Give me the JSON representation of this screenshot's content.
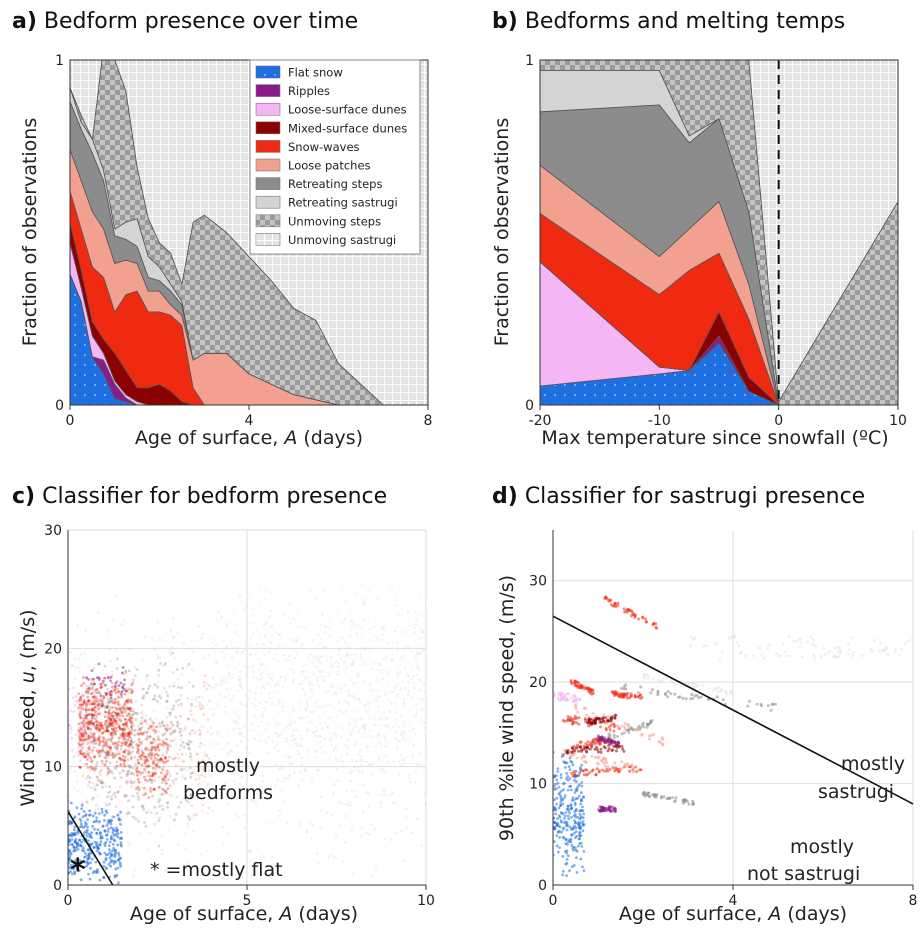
{
  "colors": {
    "flat_snow": "#1f6fe0",
    "ripples": "#8b1a8b",
    "loose_surface_dunes": "#f4b6f4",
    "mixed_surface_dunes": "#8b0000",
    "snow_waves": "#f02a10",
    "loose_patches": "#f2a090",
    "retreating_steps": "#8c8c8c",
    "retreating_sastrugi": "#d4d4d4",
    "unmoving_steps": "#9a9a9a",
    "unmoving_sastrugi": "#e3e3e3",
    "grid": "#dddddd",
    "axis": "#333333"
  },
  "panel_a": {
    "letter": "a)",
    "title": "Bedform presence over time",
    "ylabel": "Fraction of observations",
    "xlabel_pre": "Age of surface, ",
    "xlabel_var": "A",
    "xlabel_post": " (days)",
    "legend": [
      "Flat snow",
      "Ripples",
      "Loose-surface dunes",
      "Mixed-surface dunes",
      "Snow-waves",
      "Loose patches",
      "Retreating steps",
      "Retreating sastrugi",
      "Unmoving steps",
      "Unmoving sastrugi"
    ]
  },
  "panel_b": {
    "letter": "b)",
    "title": "Bedforms and melting temps",
    "ylabel": "Fraction of observations",
    "xlabel": "Max temperature since snowfall (ºC)"
  },
  "panel_c": {
    "letter": "c)",
    "title": "Classifier for bedform presence",
    "ylabel_pre": "Wind speed, ",
    "ylabel_var": "u",
    "ylabel_post": ", (m/s)",
    "xlabel_pre": "Age of surface, ",
    "xlabel_var": "A",
    "xlabel_post": " (days)",
    "ann_bedforms_1": "mostly",
    "ann_bedforms_2": "bedforms",
    "ann_flat_star": "*",
    "ann_flat": "* =mostly flat"
  },
  "panel_d": {
    "letter": "d)",
    "title": "Classifier for sastrugi presence",
    "ylabel": "90th %ile wind speed, (m/s)",
    "xlabel_pre": "Age of surface, ",
    "xlabel_var": "A",
    "xlabel_post": " (days)",
    "ann_sastrugi_1": "mostly",
    "ann_sastrugi_2": "sastrugi",
    "ann_not_1": "mostly",
    "ann_not_2": "not sastrugi"
  },
  "chart_data": [
    {
      "type": "area",
      "panel": "a",
      "title": "Bedform presence over time",
      "xlabel": "Age of surface, A (days)",
      "ylabel": "Fraction of observations",
      "xlim": [
        0,
        8
      ],
      "ylim": [
        0,
        1
      ],
      "xticks": [
        0,
        4,
        8
      ],
      "yticks": [
        0,
        1
      ],
      "x": [
        0,
        0.25,
        0.5,
        0.75,
        1.0,
        1.25,
        1.5,
        1.75,
        2.0,
        2.25,
        2.5,
        2.75,
        3.0,
        3.5,
        4.0,
        4.5,
        5.0,
        5.5,
        6.0,
        6.5,
        7.0,
        8.0
      ],
      "series": [
        {
          "name": "Flat snow",
          "key": "flat_snow",
          "values": [
            0.38,
            0.3,
            0.14,
            0.09,
            0.02,
            0.01,
            0,
            0,
            0,
            0,
            0,
            0,
            0,
            0,
            0,
            0,
            0,
            0,
            0,
            0,
            0,
            0
          ]
        },
        {
          "name": "Ripples",
          "key": "ripples",
          "values": [
            0,
            0,
            0,
            0.04,
            0.04,
            0.01,
            0,
            0,
            0,
            0,
            0,
            0,
            0,
            0,
            0,
            0,
            0,
            0,
            0,
            0,
            0,
            0
          ]
        },
        {
          "name": "Loose-surface dunes",
          "key": "loose_surface_dunes",
          "values": [
            0.09,
            0.04,
            0.06,
            0.02,
            0.01,
            0.01,
            0.01,
            0,
            0,
            0,
            0,
            0,
            0,
            0,
            0,
            0,
            0,
            0,
            0,
            0,
            0,
            0
          ]
        },
        {
          "name": "Mixed-surface dunes",
          "key": "mixed_surface_dunes",
          "values": [
            0.06,
            0.05,
            0.04,
            0.04,
            0.08,
            0.07,
            0.04,
            0.05,
            0.06,
            0.04,
            0.01,
            0,
            0,
            0,
            0,
            0,
            0,
            0,
            0,
            0,
            0,
            0
          ]
        },
        {
          "name": "Snow-waves",
          "key": "snow_waves",
          "values": [
            0.09,
            0.12,
            0.16,
            0.18,
            0.12,
            0.22,
            0.28,
            0.22,
            0.21,
            0.22,
            0.22,
            0.05,
            0,
            0,
            0,
            0,
            0,
            0,
            0,
            0,
            0,
            0
          ]
        },
        {
          "name": "Loose patches",
          "key": "loose_patches",
          "values": [
            0.12,
            0.14,
            0.16,
            0.14,
            0.14,
            0.1,
            0.08,
            0.06,
            0.06,
            0.03,
            0.03,
            0.08,
            0.15,
            0.15,
            0.09,
            0.06,
            0.03,
            0.015,
            0,
            0,
            0,
            0
          ]
        },
        {
          "name": "Retreating steps",
          "key": "retreating_steps",
          "values": [
            0.14,
            0.15,
            0.17,
            0.14,
            0.08,
            0.06,
            0.05,
            0.04,
            0.03,
            0.04,
            0.03,
            0,
            0,
            0,
            0,
            0,
            0,
            0,
            0,
            0,
            0,
            0
          ]
        },
        {
          "name": "Retreating sastrugi",
          "key": "retreating_sastrugi",
          "values": [
            0.04,
            0.02,
            0.04,
            0.03,
            0.02,
            0.05,
            0.08,
            0.06,
            0.04,
            0.02,
            0.01,
            0,
            0,
            0,
            0,
            0,
            0,
            0,
            0,
            0,
            0,
            0
          ]
        },
        {
          "name": "Unmoving steps",
          "key": "unmoving_steps",
          "values": [
            0,
            0.02,
            0,
            0.36,
            0.49,
            0.38,
            0.15,
            0.11,
            0.07,
            0.09,
            0.05,
            0.4,
            0.4,
            0.35,
            0.34,
            0.3,
            0.25,
            0.23,
            0.12,
            0.06,
            0,
            0
          ]
        },
        {
          "name": "Unmoving sastrugi",
          "key": "unmoving_sastrugi",
          "values": [
            0.08,
            0.16,
            0.23,
            0,
            0,
            0.09,
            0.31,
            0.46,
            0.53,
            0.56,
            0.65,
            0.47,
            0.45,
            0.5,
            0.57,
            0.64,
            0.72,
            0.755,
            0.88,
            0.94,
            1.0,
            1.0
          ]
        }
      ]
    },
    {
      "type": "area",
      "panel": "b",
      "title": "Bedforms and melting temps",
      "xlabel": "Max temperature since snowfall (ºC)",
      "ylabel": "Fraction of observations",
      "xlim": [
        -20,
        10
      ],
      "ylim": [
        0,
        1
      ],
      "xticks": [
        -20,
        -10,
        0,
        10
      ],
      "yticks": [
        0,
        1
      ],
      "vline_x": 0,
      "x": [
        -20,
        -10,
        -7.5,
        -5,
        -2.5,
        0,
        10
      ],
      "series": [
        {
          "name": "Flat snow",
          "key": "flat_snow",
          "values": [
            0.055,
            0.09,
            0.1,
            0.18,
            0.04,
            0,
            0
          ]
        },
        {
          "name": "Ripples",
          "key": "ripples",
          "values": [
            0,
            0,
            0,
            0.02,
            0,
            0,
            0
          ]
        },
        {
          "name": "Loose-surface dunes",
          "key": "loose_surface_dunes",
          "values": [
            0.36,
            0.02,
            0,
            0,
            0,
            0,
            0
          ]
        },
        {
          "name": "Mixed-surface dunes",
          "key": "mixed_surface_dunes",
          "values": [
            0,
            0,
            0,
            0.07,
            0.04,
            0,
            0
          ]
        },
        {
          "name": "Snow-waves",
          "key": "snow_waves",
          "values": [
            0.14,
            0.21,
            0.29,
            0.17,
            0.17,
            0,
            0
          ]
        },
        {
          "name": "Loose patches",
          "key": "loose_patches",
          "values": [
            0.14,
            0.11,
            0.12,
            0.15,
            0.1,
            0,
            0
          ]
        },
        {
          "name": "Retreating steps",
          "key": "retreating_steps",
          "values": [
            0.155,
            0.44,
            0.25,
            0.24,
            0.21,
            0,
            0
          ]
        },
        {
          "name": "Retreating sastrugi",
          "key": "retreating_sastrugi",
          "values": [
            0.12,
            0.1,
            0.02,
            0,
            0,
            0,
            0
          ]
        },
        {
          "name": "Unmoving steps",
          "key": "unmoving_steps",
          "values": [
            0.03,
            0.03,
            0.22,
            0.17,
            0.44,
            0.01,
            0.59
          ]
        },
        {
          "name": "Unmoving sastrugi",
          "key": "unmoving_sastrugi",
          "values": [
            0,
            0,
            0,
            0,
            0,
            0.99,
            0.41
          ]
        }
      ]
    },
    {
      "type": "scatter",
      "panel": "c",
      "title": "Classifier for bedform presence",
      "xlabel": "Age of surface, A (days)",
      "ylabel": "Wind speed, u, (m/s)",
      "xlim": [
        0,
        10
      ],
      "ylim": [
        0,
        30
      ],
      "xticks": [
        0,
        5,
        10
      ],
      "yticks": [
        0,
        10,
        20,
        30
      ],
      "grid": true,
      "boundary": {
        "x": [
          0,
          1.25
        ],
        "y": [
          6.2,
          0
        ]
      },
      "clusters": [
        {
          "key": "retreating_sastrugi",
          "x": [
            0,
            10
          ],
          "y": [
            0,
            25
          ],
          "n": 800,
          "alpha": 0.3
        },
        {
          "key": "unmoving_sastrugi",
          "x": [
            4,
            10
          ],
          "y": [
            9,
            26
          ],
          "n": 600,
          "alpha": 0.3
        },
        {
          "key": "snow_waves",
          "x": [
            0.3,
            1.8
          ],
          "y": [
            9,
            18
          ],
          "n": 450,
          "alpha": 0.4
        },
        {
          "key": "snow_waves",
          "x": [
            1.9,
            2.8
          ],
          "y": [
            7,
            14
          ],
          "n": 150,
          "alpha": 0.4
        },
        {
          "key": "loose_patches",
          "x": [
            0.3,
            4
          ],
          "y": [
            5,
            19
          ],
          "n": 250,
          "alpha": 0.35
        },
        {
          "key": "retreating_steps",
          "x": [
            0.5,
            3.5
          ],
          "y": [
            3,
            20
          ],
          "n": 350,
          "alpha": 0.35
        },
        {
          "key": "loose_surface_dunes",
          "x": [
            0,
            0.8
          ],
          "y": [
            10,
            19
          ],
          "n": 60,
          "alpha": 0.5
        },
        {
          "key": "ripples",
          "x": [
            0.5,
            1.6
          ],
          "y": [
            15,
            19
          ],
          "n": 30,
          "alpha": 0.5
        },
        {
          "key": "mixed_surface_dunes",
          "x": [
            0.5,
            1.8
          ],
          "y": [
            10,
            18
          ],
          "n": 40,
          "alpha": 0.45
        },
        {
          "key": "flat_snow",
          "x": [
            0,
            1.5
          ],
          "y": [
            0,
            7
          ],
          "n": 320,
          "alpha": 0.55
        }
      ]
    },
    {
      "type": "scatter",
      "panel": "d",
      "title": "Classifier for sastrugi presence",
      "xlabel": "Age of surface, A (days)",
      "ylabel": "90th %ile wind speed, (m/s)",
      "xlim": [
        0,
        8
      ],
      "ylim": [
        0,
        35
      ],
      "xticks": [
        0,
        4,
        8
      ],
      "yticks": [
        0,
        10,
        20,
        30
      ],
      "grid": true,
      "boundary": {
        "x": [
          0,
          8
        ],
        "y": [
          26.5,
          8
        ]
      },
      "streaks": [
        {
          "key": "unmoving_sastrugi",
          "x0": 3.0,
          "y0": 24,
          "x1": 8.0,
          "y1": 23.8,
          "width": 1.2
        },
        {
          "key": "unmoving_sastrugi",
          "x0": 3.5,
          "y0": 22.5,
          "x1": 8.0,
          "y1": 23.0,
          "width": 0.8
        },
        {
          "key": "unmoving_sastrugi",
          "x0": 2.0,
          "y0": 20.5,
          "x1": 4.0,
          "y1": 19.0,
          "width": 0.6
        },
        {
          "key": "retreating_steps",
          "x0": 1.5,
          "y0": 19.5,
          "x1": 5.0,
          "y1": 17.5,
          "width": 0.7
        },
        {
          "key": "retreating_steps",
          "x0": 0.8,
          "y0": 14,
          "x1": 2.2,
          "y1": 16,
          "width": 0.6
        },
        {
          "key": "retreating_steps",
          "x0": 2.0,
          "y0": 9,
          "x1": 3.2,
          "y1": 8,
          "width": 0.5
        },
        {
          "key": "snow_waves",
          "x0": 1.1,
          "y0": 28.3,
          "x1": 2.3,
          "y1": 25.5,
          "width": 0.6
        },
        {
          "key": "snow_waves",
          "x0": 0.4,
          "y0": 20,
          "x1": 0.9,
          "y1": 19,
          "width": 0.6
        },
        {
          "key": "snow_waves",
          "x0": 1.3,
          "y0": 18.8,
          "x1": 2.0,
          "y1": 18.6,
          "width": 0.6
        },
        {
          "key": "snow_waves",
          "x0": 0.2,
          "y0": 16.5,
          "x1": 1.5,
          "y1": 15.5,
          "width": 0.9
        },
        {
          "key": "snow_waves",
          "x0": 0.4,
          "y0": 13.5,
          "x1": 1.3,
          "y1": 14.5,
          "width": 0.7
        },
        {
          "key": "snow_waves",
          "x0": 0.4,
          "y0": 11,
          "x1": 2.0,
          "y1": 11.5,
          "width": 0.6
        },
        {
          "key": "loose_patches",
          "x0": 0.5,
          "y0": 17.5,
          "x1": 2.5,
          "y1": 14,
          "width": 0.9
        },
        {
          "key": "loose_patches",
          "x0": 0.2,
          "y0": 13,
          "x1": 1.8,
          "y1": 11.5,
          "width": 0.8
        },
        {
          "key": "loose_surface_dunes",
          "x0": 0.0,
          "y0": 18.7,
          "x1": 0.6,
          "y1": 18.3,
          "width": 0.8
        },
        {
          "key": "ripples",
          "x0": 1.0,
          "y0": 14.5,
          "x1": 1.5,
          "y1": 13.8,
          "width": 0.5
        },
        {
          "key": "ripples",
          "x0": 1.0,
          "y0": 7.5,
          "x1": 1.4,
          "y1": 7.5,
          "width": 0.5
        },
        {
          "key": "mixed_surface_dunes",
          "x0": 0.3,
          "y0": 13.2,
          "x1": 1.6,
          "y1": 13.5,
          "width": 0.7
        },
        {
          "key": "mixed_surface_dunes",
          "x0": 0.7,
          "y0": 16,
          "x1": 1.4,
          "y1": 16.5,
          "width": 0.5
        }
      ],
      "clusters": [
        {
          "key": "flat_snow",
          "x": [
            0,
            0.7
          ],
          "y": [
            0.5,
            14
          ],
          "n": 260,
          "alpha": 0.55
        }
      ]
    }
  ]
}
